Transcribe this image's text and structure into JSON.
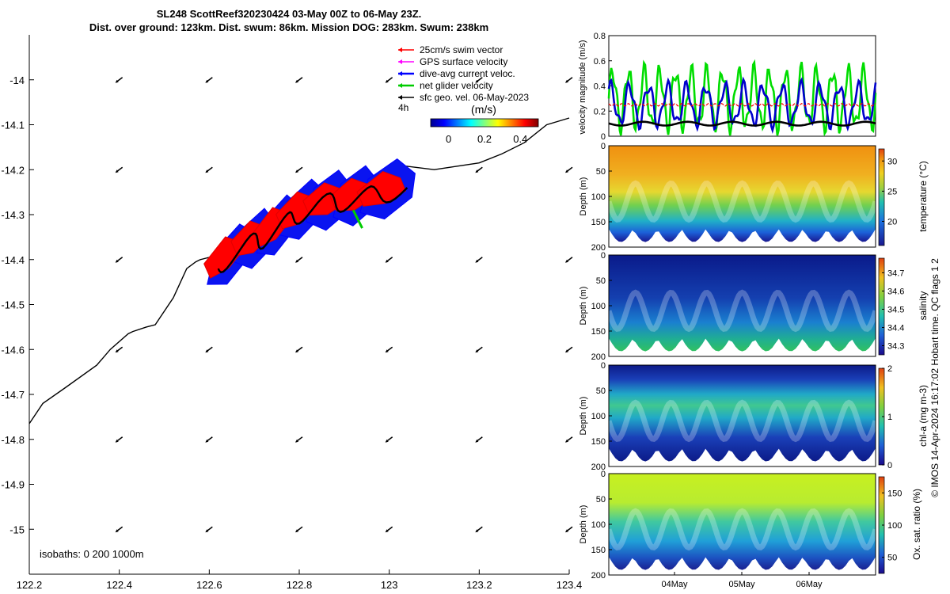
{
  "title_line1": "SL248 ScottReef320230424 03-May 00Z to 06-May 23Z.",
  "title_line2": "Dist. over ground: 123km. Dist. swum: 86km. Mission DOG: 283km. Swum: 238km",
  "colors": {
    "swim": "#ff0000",
    "gps": "#ff00ff",
    "current": "#0000ff",
    "net": "#00cc00",
    "geo": "#000000"
  },
  "chart_data": [
    {
      "type": "scatter",
      "name": "track-map",
      "xlim": [
        122.2,
        123.4
      ],
      "ylim": [
        -15.1,
        -13.9
      ],
      "xticks": [
        122.2,
        122.4,
        122.6,
        122.8,
        123,
        123.2,
        123.4
      ],
      "yticks": [
        -14,
        -14.1,
        -14.2,
        -14.3,
        -14.4,
        -14.5,
        -14.6,
        -14.7,
        -14.8,
        -14.9,
        -15
      ],
      "xtick_labels": [
        "122.2",
        "122.4",
        "122.6",
        "122.8",
        "123",
        "123.2",
        "123.4"
      ],
      "ytick_labels": [
        "-14",
        "-14.1",
        "-14.2",
        "-14.3",
        "-14.4",
        "-14.5",
        "-14.6",
        "-14.7",
        "-14.8",
        "-14.9",
        "-15"
      ],
      "legend": [
        {
          "label": "25cm/s swim vector",
          "color": "#ff0000"
        },
        {
          "label": "GPS surface velocity",
          "color": "#ff00ff"
        },
        {
          "label": "dive-avg current veloc.",
          "color": "#0000ff"
        },
        {
          "label": "net glider velocity",
          "color": "#00cc00"
        },
        {
          "label": "sfc geo. vel. 06-May-2023",
          "color": "#000000"
        }
      ],
      "interval_label": "4h",
      "colorbar": {
        "label": "(m/s)",
        "ticks": [
          0,
          0.2,
          0.4
        ],
        "tick_labels": [
          "0",
          "0.2",
          "0.4"
        ],
        "range": [
          -0.1,
          0.5
        ]
      },
      "isobath_label": "isobaths: 0   200  1000m",
      "isobath_0m": {
        "lon": [
          122.2,
          122.23,
          122.28,
          122.35,
          122.38,
          122.42,
          122.43,
          122.46,
          122.48,
          122.52,
          122.55,
          122.57,
          122.58,
          122.62,
          122.7,
          122.9,
          123.02,
          123.1,
          123.2,
          123.25,
          123.3,
          123.35,
          123.4
        ],
        "lat": [
          -14.765,
          -14.72,
          -14.685,
          -14.635,
          -14.6,
          -14.565,
          -14.56,
          -14.55,
          -14.545,
          -14.485,
          -14.42,
          -14.405,
          -14.4,
          -14.39,
          -14.36,
          -14.27,
          -14.19,
          -14.2,
          -14.185,
          -14.165,
          -14.14,
          -14.1,
          -14.085
        ]
      },
      "geo_vector_grid": {
        "lon": [
          122.4,
          122.6,
          122.8,
          123.0,
          123.2,
          123.4
        ],
        "lat": [
          -14.0,
          -14.2,
          -14.4,
          -14.6,
          -14.8,
          -15.0
        ]
      },
      "glider_track_lon": [
        122.62,
        122.68,
        122.73,
        122.78,
        122.84,
        122.9,
        122.96,
        123.04
      ],
      "glider_track_lat": [
        -14.42,
        -14.37,
        -14.35,
        -14.31,
        -14.28,
        -14.27,
        -14.26,
        -14.24
      ]
    },
    {
      "type": "line",
      "name": "velocity-magnitude",
      "ylabel": "velocity magnitude (m/s)",
      "ylim": [
        0,
        0.8
      ],
      "yticks": [
        0,
        0.2,
        0.4,
        0.6,
        0.8
      ],
      "ytick_labels": [
        "0",
        "0.2",
        "0.4",
        "0.6",
        "0.8"
      ],
      "series": [
        {
          "name": "net glider velocity",
          "color": "#00dd00",
          "mean": 0.3,
          "amplitude": 0.22,
          "cycles": 17
        },
        {
          "name": "dive-avg current veloc.",
          "color": "#0000cc",
          "mean": 0.25,
          "amplitude": 0.15,
          "cycles": 14
        },
        {
          "name": "25cm/s swim vector",
          "color": "#ff0000",
          "mean": 0.25,
          "amplitude": 0.01,
          "cycles": 40
        },
        {
          "name": "sfc geo. vel.",
          "color": "#000000",
          "mean": 0.1,
          "amplitude": 0.015,
          "cycles": 6
        }
      ]
    },
    {
      "type": "heatmap",
      "name": "temperature",
      "ylabel": "Depth (m)",
      "ylim": [
        200,
        0
      ],
      "yticks": [
        0,
        50,
        100,
        150,
        200
      ],
      "ytick_labels": [
        "0",
        "50",
        "100",
        "150",
        "200"
      ],
      "colorbar_label": "temperature (°C)",
      "cbar_ticks": [
        20,
        25,
        30
      ],
      "cbar_tick_labels": [
        "20",
        "25",
        "30"
      ],
      "cbar_range": [
        16,
        32
      ]
    },
    {
      "type": "heatmap",
      "name": "salinity",
      "ylabel": "Depth (m)",
      "ylim": [
        200,
        0
      ],
      "yticks": [
        0,
        50,
        100,
        150,
        200
      ],
      "ytick_labels": [
        "0",
        "50",
        "100",
        "150",
        "200"
      ],
      "colorbar_label": "salinity",
      "cbar_ticks": [
        34.3,
        34.4,
        34.5,
        34.6,
        34.7
      ],
      "cbar_tick_labels": [
        "34.3",
        "34.4",
        "34.5",
        "34.6",
        "34.7"
      ],
      "cbar_range": [
        34.25,
        34.78
      ]
    },
    {
      "type": "heatmap",
      "name": "chl-a",
      "ylabel": "Depth (m)",
      "ylim": [
        200,
        0
      ],
      "yticks": [
        0,
        50,
        100,
        150,
        200
      ],
      "ytick_labels": [
        "0",
        "50",
        "100",
        "150",
        "200"
      ],
      "colorbar_label": "chl-a (mg m-3)",
      "cbar_ticks": [
        0,
        1,
        2
      ],
      "cbar_tick_labels": [
        "0",
        "1",
        "2"
      ],
      "cbar_range": [
        0,
        2
      ]
    },
    {
      "type": "heatmap",
      "name": "oxygen",
      "ylabel": "Depth (m)",
      "ylim": [
        200,
        0
      ],
      "yticks": [
        0,
        50,
        100,
        150,
        200
      ],
      "ytick_labels": [
        "0",
        "50",
        "100",
        "150",
        "200"
      ],
      "colorbar_label": "Ox. sat. ratio (%)",
      "cbar_ticks": [
        50,
        100,
        150
      ],
      "cbar_tick_labels": [
        "50",
        "100",
        "150"
      ],
      "cbar_range": [
        25,
        175
      ],
      "xtick_labels": [
        "04May",
        "05May",
        "06May"
      ]
    }
  ],
  "side_note": "© IMOS 14-Apr-2024 16:17:02 Hobart time. QC flags 1  2"
}
